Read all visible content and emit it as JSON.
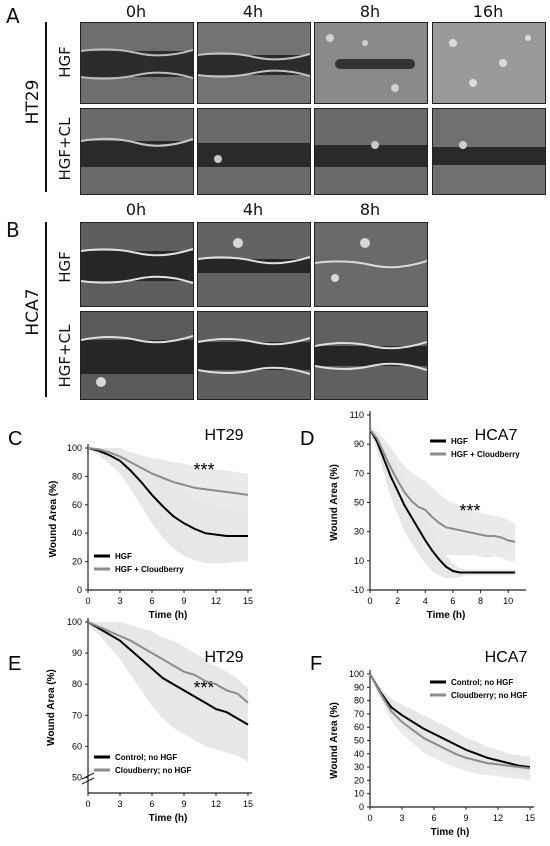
{
  "panel_letters": {
    "a": "A",
    "b": "B",
    "c": "C",
    "d": "D",
    "e": "E",
    "f": "F"
  },
  "panel_a": {
    "cell_line": "HT29",
    "times": [
      "0h",
      "4h",
      "8h",
      "16h"
    ],
    "rows": [
      "HGF",
      "HGF+CL"
    ]
  },
  "panel_b": {
    "cell_line": "HCA7",
    "times": [
      "0h",
      "4h",
      "8h"
    ],
    "rows": [
      "HGF",
      "HGF+CL"
    ]
  },
  "colors": {
    "hgf": "#000000",
    "cloudberry": "#8c8c8c",
    "band": "#e6e6e6",
    "axis": "#222222"
  },
  "chart_data": [
    {
      "id": "C",
      "type": "line",
      "title": "HT29",
      "xlabel": "Time (h)",
      "ylabel": "Wound Area (%)",
      "xlim": [
        0,
        15
      ],
      "ylim": [
        0,
        100
      ],
      "xticks": [
        0,
        3,
        6,
        9,
        12,
        15
      ],
      "yticks": [
        0,
        20,
        40,
        60,
        80,
        100
      ],
      "annotation": "***",
      "legend": "lower-left",
      "x": [
        0,
        1,
        2,
        3,
        4,
        5,
        6,
        7,
        8,
        9,
        10,
        11,
        12,
        13,
        14,
        15
      ],
      "series": [
        {
          "name": "HGF",
          "color": "#000000",
          "values": [
            100,
            98,
            95,
            91,
            84,
            76,
            67,
            59,
            52,
            47,
            43,
            40,
            39,
            38,
            38,
            38
          ],
          "error": [
            1,
            3,
            6,
            9,
            13,
            17,
            20,
            22,
            23,
            23,
            22,
            21,
            20,
            19,
            18,
            18
          ]
        },
        {
          "name": "HGF + Cloudberry",
          "color": "#8c8c8c",
          "values": [
            100,
            99,
            97,
            94,
            90,
            86,
            82,
            79,
            76,
            74,
            72,
            71,
            70,
            69,
            68,
            67
          ],
          "error": [
            1,
            2,
            3,
            5,
            7,
            9,
            11,
            13,
            14,
            15,
            15,
            15,
            15,
            15,
            15,
            15
          ]
        }
      ]
    },
    {
      "id": "D",
      "type": "line",
      "title": "HCA7",
      "xlabel": "Time (h)",
      "ylabel": "Wound Area (%)",
      "xlim": [
        0,
        11
      ],
      "ylim": [
        -10,
        110
      ],
      "xticks": [
        0,
        2,
        4,
        6,
        8,
        10
      ],
      "yticks": [
        -10,
        10,
        30,
        50,
        70,
        90,
        110
      ],
      "annotation": "***",
      "legend": "top-left",
      "x": [
        0,
        0.5,
        1,
        1.5,
        2,
        2.5,
        3,
        3.5,
        4,
        4.5,
        5,
        5.5,
        6,
        6.5,
        7,
        7.5,
        8,
        8.5,
        9,
        9.5,
        10,
        10.5
      ],
      "series": [
        {
          "name": "HGF",
          "color": "#000000",
          "values": [
            100,
            92,
            80,
            68,
            58,
            48,
            40,
            32,
            24,
            17,
            11,
            6,
            3,
            2,
            2,
            2,
            2,
            2,
            2,
            2,
            2,
            2
          ],
          "error": [
            0,
            6,
            10,
            14,
            16,
            18,
            18,
            17,
            16,
            14,
            11,
            8,
            5,
            3,
            2,
            2,
            2,
            2,
            2,
            2,
            2,
            2
          ]
        },
        {
          "name": "HGF + Cloudberry",
          "color": "#8c8c8c",
          "values": [
            100,
            94,
            84,
            74,
            65,
            57,
            51,
            47,
            45,
            40,
            36,
            33,
            32,
            31,
            30,
            29,
            28,
            27,
            27,
            26,
            24,
            23
          ],
          "error": [
            0,
            5,
            10,
            14,
            16,
            18,
            20,
            20,
            20,
            20,
            20,
            19,
            18,
            17,
            16,
            15,
            15,
            15,
            14,
            14,
            14,
            13
          ]
        }
      ]
    },
    {
      "id": "E",
      "type": "line",
      "title": "HT29",
      "xlabel": "Time (h)",
      "ylabel": "Wound Area (%)",
      "xlim": [
        0,
        15
      ],
      "ylim": [
        45,
        100
      ],
      "xticks": [
        0,
        3,
        6,
        9,
        12,
        15
      ],
      "yticks": [
        50,
        60,
        70,
        80,
        90,
        100
      ],
      "axis_break": true,
      "annotation": "***",
      "legend": "lower-left",
      "x": [
        0,
        1,
        2,
        3,
        4,
        5,
        6,
        7,
        8,
        9,
        10,
        11,
        12,
        13,
        14,
        15
      ],
      "series": [
        {
          "name": "Control; no HGF",
          "color": "#000000",
          "values": [
            100,
            98,
            96,
            94,
            91,
            88,
            85,
            82,
            80,
            78,
            76,
            74,
            72,
            71,
            69,
            67
          ],
          "error": [
            1,
            2,
            4,
            6,
            8,
            10,
            12,
            13,
            14,
            14,
            14,
            14,
            13,
            13,
            12,
            12
          ]
        },
        {
          "name": "Cloudberry; no HGF",
          "color": "#8c8c8c",
          "values": [
            100,
            98.5,
            97,
            95.5,
            94,
            92,
            90,
            88,
            86,
            84,
            83,
            81,
            80,
            78,
            77,
            74
          ],
          "error": [
            1,
            1.5,
            2,
            3,
            4,
            5,
            6,
            7,
            7,
            7,
            7,
            6,
            6,
            6,
            5,
            4
          ]
        }
      ]
    },
    {
      "id": "F",
      "type": "line",
      "title": "HCA7",
      "xlabel": "Time (h)",
      "ylabel": "Wound Area (%)",
      "xlim": [
        0,
        15
      ],
      "ylim": [
        0,
        100
      ],
      "xticks": [
        0,
        3,
        6,
        9,
        12,
        15
      ],
      "yticks": [
        0,
        10,
        20,
        30,
        40,
        50,
        60,
        70,
        80,
        90,
        100
      ],
      "legend": "top-center",
      "x": [
        0,
        1,
        2,
        3,
        4,
        5,
        6,
        7,
        8,
        9,
        10,
        11,
        12,
        13,
        14,
        15
      ],
      "series": [
        {
          "name": "Control; no HGF",
          "color": "#000000",
          "values": [
            100,
            86,
            75,
            69,
            64,
            59,
            55,
            51,
            47,
            43,
            40,
            37,
            35,
            33,
            31,
            30
          ],
          "error": [
            1,
            4,
            6,
            8,
            9,
            10,
            10,
            10,
            10,
            9,
            9,
            8,
            8,
            7,
            7,
            7
          ]
        },
        {
          "name": "Cloudberry; no HGF",
          "color": "#8c8c8c",
          "values": [
            100,
            85,
            72,
            64,
            58,
            52,
            48,
            44,
            40,
            37,
            35,
            33,
            32,
            31,
            30,
            29
          ],
          "error": [
            1,
            4,
            7,
            9,
            10,
            11,
            11,
            11,
            10,
            10,
            10,
            9,
            9,
            9,
            9,
            9
          ]
        }
      ]
    }
  ]
}
